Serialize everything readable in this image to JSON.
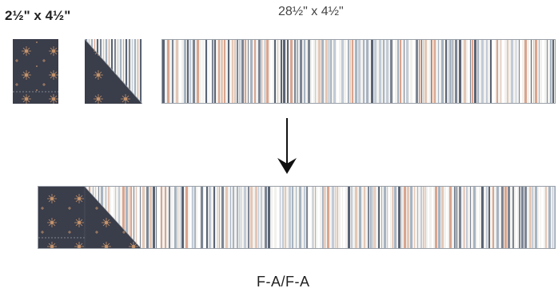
{
  "labels": {
    "small_pieces_size": "2½\" x 4½\"",
    "strip_size": "28½\" x 4½\"",
    "unit_name": "F-A/F-A"
  },
  "icons": {
    "down_arrow": "down-arrow-icon"
  },
  "colors": {
    "navy_fabric": "#3a3d4a",
    "stripe_background": "#f2f1ee",
    "stripe_palette": [
      "#7c8594",
      "#a7b3c1",
      "#c2cbd6",
      "#d9a58f",
      "#e4c7b7",
      "#596374",
      "#ffffff"
    ],
    "sparkle": "#c7946c"
  }
}
